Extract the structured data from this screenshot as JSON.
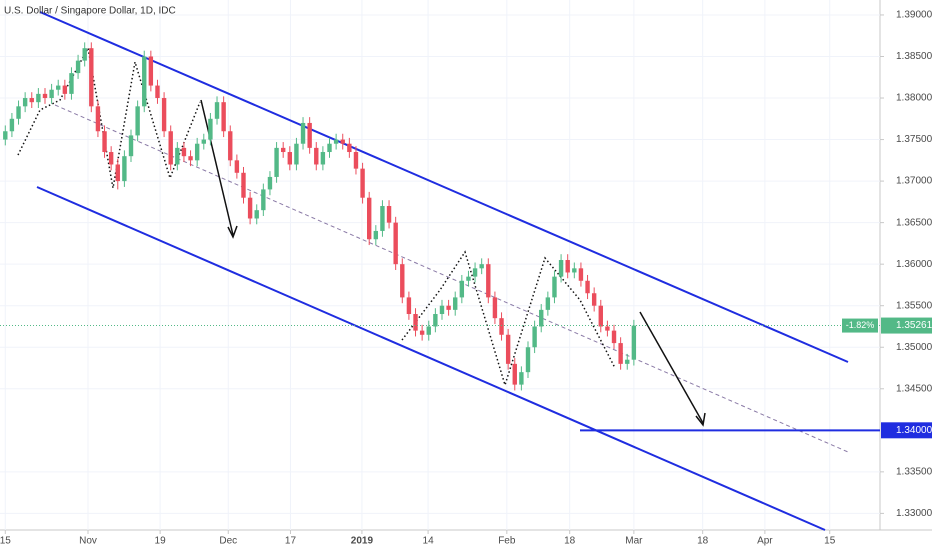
{
  "chart_data": {
    "type": "candlestick",
    "title": "U.S. Dollar / Singapore Dollar, 1D, IDC",
    "x": [
      0,
      1,
      2,
      3,
      4,
      5,
      6,
      7,
      8,
      9,
      10,
      11,
      12,
      13,
      14,
      15,
      16,
      17,
      18,
      19,
      20,
      21,
      22,
      23,
      24,
      25,
      26,
      27,
      28,
      29,
      30,
      31,
      32,
      33,
      34,
      35,
      36,
      37,
      38,
      39,
      40,
      41,
      42,
      43,
      44,
      45,
      46,
      47,
      48,
      49,
      50,
      51,
      52,
      53,
      54,
      55,
      56,
      57,
      58,
      59,
      60,
      61,
      62,
      63,
      64,
      65,
      66,
      67,
      68,
      69,
      70,
      71,
      72,
      73,
      74,
      75,
      76,
      77,
      78,
      79,
      80,
      81,
      82,
      83,
      84,
      85,
      86,
      87,
      88,
      89,
      90,
      91,
      92,
      93,
      94,
      95
    ],
    "open": [
      1.375,
      1.376,
      1.3775,
      1.379,
      1.38,
      1.3795,
      1.3805,
      1.38,
      1.381,
      1.3815,
      1.3805,
      1.383,
      1.3845,
      1.386,
      1.379,
      1.376,
      1.3735,
      1.372,
      1.37,
      1.373,
      1.3755,
      1.379,
      1.385,
      1.3815,
      1.38,
      1.376,
      1.372,
      1.374,
      1.373,
      1.3725,
      1.3745,
      1.375,
      1.3775,
      1.3795,
      1.376,
      1.3725,
      1.371,
      1.368,
      1.3655,
      1.3665,
      1.369,
      1.3705,
      1.374,
      1.3735,
      1.372,
      1.3745,
      1.377,
      1.374,
      1.372,
      1.3735,
      1.3745,
      1.375,
      1.3745,
      1.3735,
      1.3715,
      1.368,
      1.363,
      1.364,
      1.367,
      1.365,
      1.36,
      1.356,
      1.354,
      1.352,
      1.3515,
      1.3525,
      1.354,
      1.355,
      1.3545,
      1.356,
      1.358,
      1.3585,
      1.3595,
      1.36,
      1.356,
      1.3535,
      1.3515,
      1.348,
      1.3455,
      1.347,
      1.35,
      1.3525,
      1.3545,
      1.356,
      1.3585,
      1.3605,
      1.359,
      1.3595,
      1.358,
      1.3565,
      1.355,
      1.3525,
      1.352,
      1.3505,
      1.348,
      1.3485
    ],
    "high": [
      1.3767,
      1.3782,
      1.3797,
      1.3807,
      1.3807,
      1.3812,
      1.3812,
      1.3817,
      1.3822,
      1.3822,
      1.3837,
      1.3852,
      1.3867,
      1.3867,
      1.3797,
      1.3767,
      1.3742,
      1.3727,
      1.3737,
      1.3762,
      1.3797,
      1.3857,
      1.3857,
      1.3822,
      1.3807,
      1.3767,
      1.3747,
      1.3747,
      1.3737,
      1.3752,
      1.3757,
      1.3782,
      1.3802,
      1.3802,
      1.3767,
      1.3732,
      1.3717,
      1.3687,
      1.3672,
      1.3697,
      1.3712,
      1.3747,
      1.3747,
      1.3742,
      1.3752,
      1.3777,
      1.3777,
      1.3747,
      1.3742,
      1.3752,
      1.3757,
      1.3757,
      1.3752,
      1.3742,
      1.3722,
      1.3687,
      1.3647,
      1.3677,
      1.3677,
      1.3657,
      1.3607,
      1.3567,
      1.3547,
      1.3527,
      1.3532,
      1.3547,
      1.3557,
      1.3557,
      1.3567,
      1.3587,
      1.3592,
      1.3602,
      1.3607,
      1.3607,
      1.3567,
      1.3542,
      1.3522,
      1.3487,
      1.3477,
      1.3507,
      1.3532,
      1.3552,
      1.3567,
      1.3592,
      1.3612,
      1.3612,
      1.3602,
      1.3602,
      1.3587,
      1.3572,
      1.3557,
      1.3532,
      1.3527,
      1.3512,
      1.3492,
      1.3533
    ],
    "low": [
      1.3743,
      1.3753,
      1.3768,
      1.3783,
      1.3788,
      1.3788,
      1.3793,
      1.3793,
      1.3803,
      1.3798,
      1.3798,
      1.3823,
      1.3838,
      1.3783,
      1.3753,
      1.3728,
      1.3713,
      1.369,
      1.3693,
      1.3723,
      1.3748,
      1.3783,
      1.3808,
      1.3793,
      1.3753,
      1.3713,
      1.3713,
      1.3723,
      1.3718,
      1.3718,
      1.3738,
      1.3743,
      1.3768,
      1.3753,
      1.3718,
      1.3703,
      1.3673,
      1.3648,
      1.3648,
      1.3658,
      1.3683,
      1.3698,
      1.3728,
      1.3713,
      1.3713,
      1.3738,
      1.3733,
      1.3713,
      1.3713,
      1.3728,
      1.3738,
      1.3738,
      1.3728,
      1.3708,
      1.3673,
      1.3623,
      1.3623,
      1.3633,
      1.3643,
      1.3593,
      1.3553,
      1.3533,
      1.3513,
      1.3508,
      1.3508,
      1.3518,
      1.3533,
      1.3538,
      1.3538,
      1.3553,
      1.3573,
      1.3578,
      1.3588,
      1.3553,
      1.3528,
      1.3508,
      1.3473,
      1.3448,
      1.3448,
      1.3463,
      1.3493,
      1.3518,
      1.3538,
      1.3553,
      1.3578,
      1.3583,
      1.3583,
      1.3573,
      1.3558,
      1.3543,
      1.3518,
      1.3513,
      1.3498,
      1.3473,
      1.3473,
      1.3478
    ],
    "close": [
      1.376,
      1.3775,
      1.379,
      1.38,
      1.3795,
      1.3805,
      1.38,
      1.381,
      1.3815,
      1.3805,
      1.383,
      1.3845,
      1.386,
      1.379,
      1.376,
      1.3735,
      1.372,
      1.37,
      1.373,
      1.3755,
      1.379,
      1.385,
      1.3815,
      1.38,
      1.376,
      1.372,
      1.374,
      1.373,
      1.3725,
      1.3745,
      1.375,
      1.3775,
      1.3795,
      1.376,
      1.3725,
      1.371,
      1.368,
      1.3655,
      1.3665,
      1.369,
      1.3705,
      1.374,
      1.3735,
      1.372,
      1.3745,
      1.377,
      1.374,
      1.372,
      1.3735,
      1.3745,
      1.375,
      1.3745,
      1.3735,
      1.3715,
      1.368,
      1.363,
      1.364,
      1.367,
      1.365,
      1.36,
      1.356,
      1.354,
      1.352,
      1.3515,
      1.3525,
      1.354,
      1.355,
      1.3545,
      1.356,
      1.358,
      1.3585,
      1.3595,
      1.36,
      1.356,
      1.3535,
      1.3515,
      1.348,
      1.3455,
      1.347,
      1.35,
      1.3525,
      1.3545,
      1.356,
      1.3585,
      1.3605,
      1.359,
      1.3595,
      1.358,
      1.3565,
      1.355,
      1.3525,
      1.352,
      1.3505,
      1.348,
      1.3485,
      1.3526
    ],
    "up_color": "#53b987",
    "down_color": "#eb4d5c",
    "xlim": [
      -0.8,
      132.2
    ],
    "xticks": [
      {
        "value": 0,
        "label": "15"
      },
      {
        "value": 12.5,
        "label": "Nov"
      },
      {
        "value": 23.4,
        "label": "19"
      },
      {
        "value": 33.7,
        "label": "Dec"
      },
      {
        "value": 43.1,
        "label": "17"
      },
      {
        "value": 53.9,
        "label": "2019"
      },
      {
        "value": 63.9,
        "label": "14"
      },
      {
        "value": 75.8,
        "label": "Feb"
      },
      {
        "value": 85.3,
        "label": "18"
      },
      {
        "value": 95,
        "label": "Mar"
      },
      {
        "value": 105.4,
        "label": "18"
      },
      {
        "value": 114.8,
        "label": "Apr"
      },
      {
        "value": 124.6,
        "label": "15"
      }
    ],
    "ylim": [
      1.328,
      1.3918
    ],
    "yticks": [
      {
        "value": 1.39,
        "label": "1.39000"
      },
      {
        "value": 1.385,
        "label": "1.38500"
      },
      {
        "value": 1.38,
        "label": "1.38000"
      },
      {
        "value": 1.375,
        "label": "1.37500"
      },
      {
        "value": 1.37,
        "label": "1.37000"
      },
      {
        "value": 1.365,
        "label": "1.36500"
      },
      {
        "value": 1.36,
        "label": "1.36000"
      },
      {
        "value": 1.355,
        "label": "1.35500"
      },
      {
        "value": 1.35,
        "label": "1.35000"
      },
      {
        "value": 1.345,
        "label": "1.34500"
      },
      {
        "value": 1.335,
        "label": "1.33500"
      },
      {
        "value": 1.33,
        "label": "1.33000"
      }
    ],
    "level": {
      "value": 1.34,
      "label": "1.34000",
      "color": "#1f2de0"
    },
    "last_price": {
      "value": 1.35261,
      "label": "1.35261"
    },
    "change_label": "-1.82%"
  }
}
